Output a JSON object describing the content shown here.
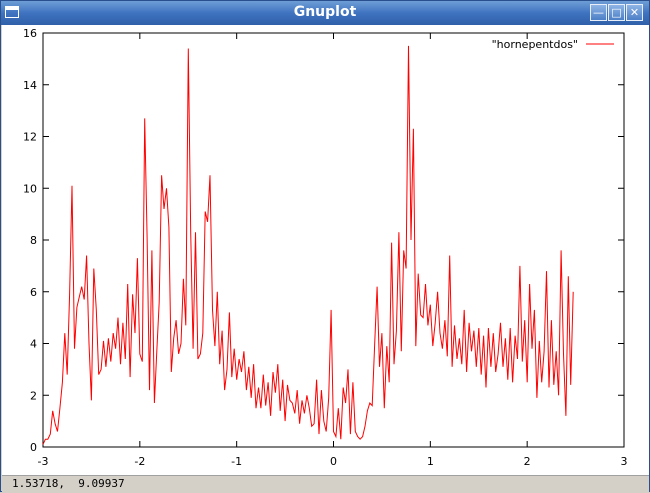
{
  "window": {
    "title": "Gnuplot"
  },
  "status": {
    "coords": "1.53718,  9.09937"
  },
  "colors": {
    "series": "#ff0000",
    "titlebar": "#3f73c0"
  },
  "icons": {
    "menu": "window-menu-icon",
    "minimize": "minimize-icon",
    "maximize": "maximize-icon",
    "close": "close-icon"
  },
  "chart_data": {
    "type": "line",
    "title": "",
    "xlabel": "",
    "ylabel": "",
    "xlim": [
      -3,
      3
    ],
    "ylim": [
      0,
      16
    ],
    "x_ticks": [
      "-3",
      "-2",
      "-1",
      "0",
      "1",
      "2",
      "3"
    ],
    "y_ticks": [
      "0",
      "2",
      "4",
      "6",
      "8",
      "10",
      "12",
      "14",
      "16"
    ],
    "grid": false,
    "legend": "top-right",
    "series": [
      {
        "name": "\"hornepentdos\"",
        "x_start": -3,
        "x_step": 0.025,
        "y": [
          0.1,
          0.3,
          0.3,
          0.5,
          1.4,
          0.9,
          0.6,
          1.5,
          2.5,
          4.4,
          2.8,
          5.9,
          10.1,
          3.8,
          5.4,
          5.8,
          6.2,
          5.7,
          7.4,
          4.0,
          1.8,
          6.9,
          5.3,
          2.8,
          3.0,
          4.1,
          3.1,
          4.2,
          3.3,
          4.4,
          3.8,
          5.0,
          3.2,
          4.8,
          3.4,
          6.3,
          2.7,
          5.9,
          4.4,
          7.3,
          3.6,
          3.3,
          12.7,
          8.1,
          2.2,
          7.6,
          1.7,
          3.7,
          5.6,
          10.5,
          9.2,
          10.0,
          8.5,
          2.9,
          4.2,
          4.9,
          3.6,
          4.0,
          6.5,
          4.7,
          15.4,
          8.3,
          3.8,
          8.3,
          3.4,
          3.6,
          4.4,
          9.1,
          8.7,
          10.5,
          5.3,
          3.9,
          6.0,
          3.2,
          4.5,
          2.2,
          3.0,
          5.2,
          2.7,
          3.8,
          2.6,
          3.4,
          2.9,
          3.7,
          2.2,
          3.1,
          1.9,
          3.2,
          1.5,
          2.3,
          1.5,
          2.8,
          1.6,
          2.5,
          1.2,
          2.9,
          2.1,
          3.2,
          1.4,
          2.6,
          1.0,
          2.4,
          1.8,
          1.7,
          1.3,
          2.2,
          0.9,
          1.8,
          1.3,
          2.0,
          1.5,
          0.8,
          0.9,
          2.6,
          0.5,
          2.2,
          1.0,
          0.6,
          1.9,
          5.3,
          0.6,
          0.4,
          1.5,
          0.3,
          2.3,
          1.7,
          3.0,
          0.5,
          2.5,
          0.6,
          0.4,
          0.3,
          0.4,
          0.8,
          1.4,
          1.7,
          1.6,
          4.0,
          6.2,
          3.1,
          4.4,
          1.5,
          3.9,
          2.5,
          7.9,
          3.2,
          4.5,
          8.3,
          3.7,
          7.6,
          6.9,
          15.5,
          8.0,
          12.3,
          3.9,
          6.7,
          5.1,
          5.0,
          6.3,
          4.7,
          5.5,
          3.9,
          4.8,
          6.0,
          4.4,
          3.8,
          4.9,
          3.5,
          7.4,
          3.1,
          4.7,
          3.4,
          4.2,
          3.2,
          5.3,
          2.9,
          4.8,
          3.7,
          4.5,
          3.1,
          4.6,
          2.8,
          4.3,
          2.3,
          4.6,
          3.1,
          4.4,
          2.9,
          3.6,
          4.8,
          3.1,
          4.2,
          2.6,
          4.6,
          2.5,
          4.3,
          3.4,
          7.0,
          3.3,
          4.9,
          2.5,
          6.3,
          3.8,
          5.3,
          1.9,
          4.1,
          2.5,
          3.7,
          6.8,
          2.3,
          4.9,
          2.4,
          3.7,
          2.0,
          7.6,
          3.6,
          1.2,
          6.6,
          2.4,
          6.0
        ]
      }
    ]
  }
}
